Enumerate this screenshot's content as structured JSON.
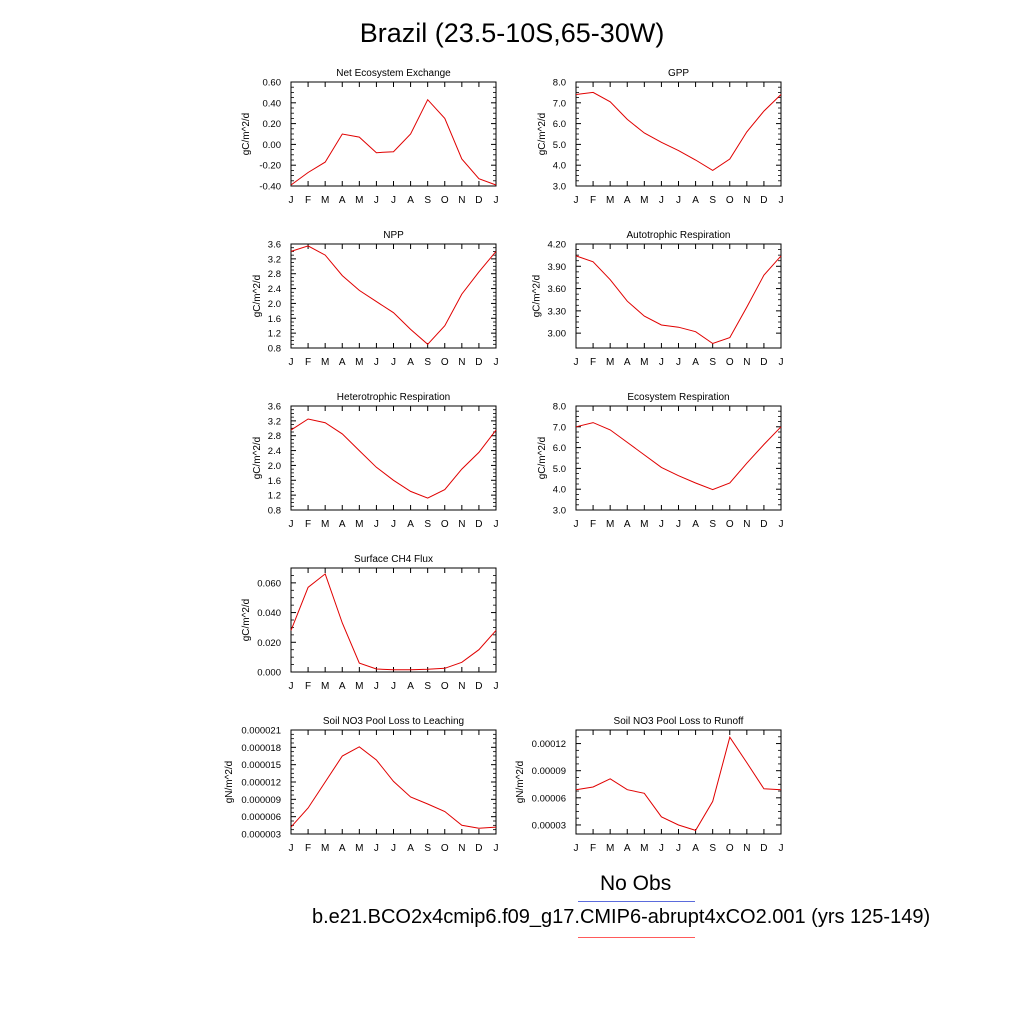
{
  "page": {
    "title": "Brazil (23.5-10S,65-30W)"
  },
  "legend": {
    "obs_label": "No Obs",
    "case_label": "b.e21.BCO2x4cmip6.f09_g17.CMIP6-abrupt4xCO2.001 (yrs 125-149)",
    "obs_color": "#5b6bdc",
    "case_color": "#ff5a5a"
  },
  "chart_data": [
    {
      "type": "line",
      "title": "Net Ecosystem Exchange",
      "ylabel": "gC/m^2/d",
      "categories": [
        "J",
        "F",
        "M",
        "A",
        "M",
        "J",
        "J",
        "A",
        "S",
        "O",
        "N",
        "D",
        "J"
      ],
      "series": [
        {
          "values": [
            -0.39,
            -0.27,
            -0.17,
            0.1,
            0.07,
            -0.08,
            -0.07,
            0.1,
            0.43,
            0.25,
            -0.14,
            -0.33,
            -0.39
          ],
          "color": "#e00000"
        }
      ],
      "ylim": [
        -0.4,
        0.6
      ],
      "yticks": [
        -0.4,
        -0.2,
        0.0,
        0.2,
        0.4,
        0.6
      ],
      "ytick_labels": [
        "-0.40",
        "-0.20",
        "0.00",
        "0.20",
        "0.40",
        "0.60"
      ]
    },
    {
      "type": "line",
      "title": "GPP",
      "ylabel": "gC/m^2/d",
      "categories": [
        "J",
        "F",
        "M",
        "A",
        "M",
        "J",
        "J",
        "A",
        "S",
        "O",
        "N",
        "D",
        "J"
      ],
      "series": [
        {
          "values": [
            7.4,
            7.5,
            7.05,
            6.2,
            5.55,
            5.1,
            4.7,
            4.25,
            3.75,
            4.3,
            5.6,
            6.6,
            7.4
          ],
          "color": "#e00000"
        }
      ],
      "ylim": [
        3.0,
        8.0
      ],
      "yticks": [
        3.0,
        4.0,
        5.0,
        6.0,
        7.0,
        8.0
      ],
      "ytick_labels": [
        "3.0",
        "4.0",
        "5.0",
        "6.0",
        "7.0",
        "8.0"
      ]
    },
    {
      "type": "line",
      "title": "NPP",
      "ylabel": "gC/m^2/d",
      "categories": [
        "J",
        "F",
        "M",
        "A",
        "M",
        "J",
        "J",
        "A",
        "S",
        "O",
        "N",
        "D",
        "J"
      ],
      "series": [
        {
          "values": [
            3.4,
            3.55,
            3.3,
            2.75,
            2.35,
            2.05,
            1.75,
            1.3,
            0.9,
            1.4,
            2.25,
            2.85,
            3.4
          ],
          "color": "#e00000"
        }
      ],
      "ylim": [
        0.8,
        3.6
      ],
      "yticks": [
        0.8,
        1.2,
        1.6,
        2.0,
        2.4,
        2.8,
        3.2,
        3.6
      ],
      "ytick_labels": [
        "0.8",
        "1.2",
        "1.6",
        "2.0",
        "2.4",
        "2.8",
        "3.2",
        "3.6"
      ]
    },
    {
      "type": "line",
      "title": "Autotrophic Respiration",
      "ylabel": "gC/m^2/d",
      "categories": [
        "J",
        "F",
        "M",
        "A",
        "M",
        "J",
        "J",
        "A",
        "S",
        "O",
        "N",
        "D",
        "J"
      ],
      "series": [
        {
          "values": [
            4.04,
            3.96,
            3.72,
            3.43,
            3.23,
            3.11,
            3.08,
            3.02,
            2.86,
            2.94,
            3.35,
            3.78,
            4.04
          ],
          "color": "#e00000"
        }
      ],
      "ylim": [
        2.8,
        4.2
      ],
      "yticks": [
        3.0,
        3.3,
        3.6,
        3.9,
        4.2
      ],
      "ytick_labels": [
        "3.00",
        "3.30",
        "3.60",
        "3.90",
        "4.20"
      ]
    },
    {
      "type": "line",
      "title": "Heterotrophic Respiration",
      "ylabel": "gC/m^2/d",
      "categories": [
        "J",
        "F",
        "M",
        "A",
        "M",
        "J",
        "J",
        "A",
        "S",
        "O",
        "N",
        "D",
        "J"
      ],
      "series": [
        {
          "values": [
            2.95,
            3.25,
            3.15,
            2.85,
            2.4,
            1.95,
            1.6,
            1.3,
            1.12,
            1.35,
            1.9,
            2.35,
            2.95
          ],
          "color": "#e00000"
        }
      ],
      "ylim": [
        0.8,
        3.6
      ],
      "yticks": [
        0.8,
        1.2,
        1.6,
        2.0,
        2.4,
        2.8,
        3.2,
        3.6
      ],
      "ytick_labels": [
        "0.8",
        "1.2",
        "1.6",
        "2.0",
        "2.4",
        "2.8",
        "3.2",
        "3.6"
      ]
    },
    {
      "type": "line",
      "title": "Ecosystem Respiration",
      "ylabel": "gC/m^2/d",
      "categories": [
        "J",
        "F",
        "M",
        "A",
        "M",
        "J",
        "J",
        "A",
        "S",
        "O",
        "N",
        "D",
        "J"
      ],
      "series": [
        {
          "values": [
            7.0,
            7.2,
            6.85,
            6.25,
            5.65,
            5.05,
            4.65,
            4.3,
            3.98,
            4.3,
            5.25,
            6.15,
            7.0
          ],
          "color": "#e00000"
        }
      ],
      "ylim": [
        3.0,
        8.0
      ],
      "yticks": [
        3.0,
        4.0,
        5.0,
        6.0,
        7.0,
        8.0
      ],
      "ytick_labels": [
        "3.0",
        "4.0",
        "5.0",
        "6.0",
        "7.0",
        "8.0"
      ]
    },
    {
      "type": "line",
      "title": "Surface CH4 Flux",
      "ylabel": "gC/m^2/d",
      "categories": [
        "J",
        "F",
        "M",
        "A",
        "M",
        "J",
        "J",
        "A",
        "S",
        "O",
        "N",
        "D",
        "J"
      ],
      "series": [
        {
          "values": [
            0.028,
            0.057,
            0.066,
            0.033,
            0.006,
            0.002,
            0.0015,
            0.0015,
            0.0018,
            0.0025,
            0.0065,
            0.015,
            0.028
          ],
          "color": "#e00000"
        }
      ],
      "ylim": [
        0.0,
        0.07
      ],
      "yticks": [
        0.0,
        0.02,
        0.04,
        0.06
      ],
      "ytick_labels": [
        "0.000",
        "0.020",
        "0.040",
        "0.060"
      ]
    },
    {
      "type": "line",
      "title": "Soil NO3 Pool Loss to Leaching",
      "ylabel": "gN/m^2/d",
      "categories": [
        "J",
        "F",
        "M",
        "A",
        "M",
        "J",
        "J",
        "A",
        "S",
        "O",
        "N",
        "D",
        "J"
      ],
      "series": [
        {
          "values": [
            4.2e-06,
            7.5e-06,
            1.2e-05,
            1.65e-05,
            1.81e-05,
            1.58e-05,
            1.21e-05,
            9.4e-06,
            8.2e-06,
            6.9e-06,
            4.5e-06,
            4e-06,
            4.2e-06
          ],
          "color": "#e00000"
        }
      ],
      "ylim": [
        3e-06,
        2.1e-05
      ],
      "yticks": [
        3e-06,
        6e-06,
        9e-06,
        1.2e-05,
        1.5e-05,
        1.8e-05,
        2.1e-05
      ],
      "ytick_labels": [
        "0.000003",
        "0.000006",
        "0.000009",
        "0.000012",
        "0.000015",
        "0.000018",
        "0.000021"
      ]
    },
    {
      "type": "line",
      "title": "Soil NO3 Pool Loss to Runoff",
      "ylabel": "gN/m^2/d",
      "categories": [
        "J",
        "F",
        "M",
        "A",
        "M",
        "J",
        "J",
        "A",
        "S",
        "O",
        "N",
        "D",
        "J"
      ],
      "series": [
        {
          "values": [
            6.9e-05,
            7.2e-05,
            8.1e-05,
            6.9e-05,
            6.5e-05,
            3.9e-05,
            3e-05,
            2.4e-05,
            5.6e-05,
            0.000127,
            9.9e-05,
            7e-05,
            6.9e-05
          ],
          "color": "#e00000"
        }
      ],
      "ylim": [
        2e-05,
        0.000135
      ],
      "yticks": [
        3e-05,
        6e-05,
        9e-05,
        0.00012
      ],
      "ytick_labels": [
        "0.00003",
        "0.00006",
        "0.00009",
        "0.00012"
      ]
    }
  ]
}
